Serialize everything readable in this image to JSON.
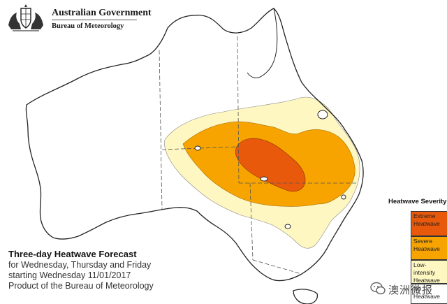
{
  "header": {
    "government": "Australian Government",
    "bureau": "Bureau of Meteorology"
  },
  "caption": {
    "title": "Three-day Heatwave Forecast",
    "line1": "for Wednesday, Thursday and Friday",
    "line2": "starting Wednesday 11/01/2017",
    "line3": "Product of the Bureau of Meteorology"
  },
  "legend": {
    "title": "Heatwave Severity",
    "items": [
      {
        "label": "Extreme Heatwave",
        "color": "#e8590c"
      },
      {
        "label": "Severe Heatwave",
        "color": "#f7a400"
      },
      {
        "label": "Low-intensity Heatwave",
        "color": "#fef7c2"
      },
      {
        "label": "No Heatwave",
        "color": "#ffffff"
      }
    ]
  },
  "watermark": {
    "text": "澳洲微报"
  },
  "colors": {
    "extreme": "#e8590c",
    "severe": "#f7a400",
    "low": "#fef7c2",
    "outline": "#222222",
    "border": "#555555"
  }
}
